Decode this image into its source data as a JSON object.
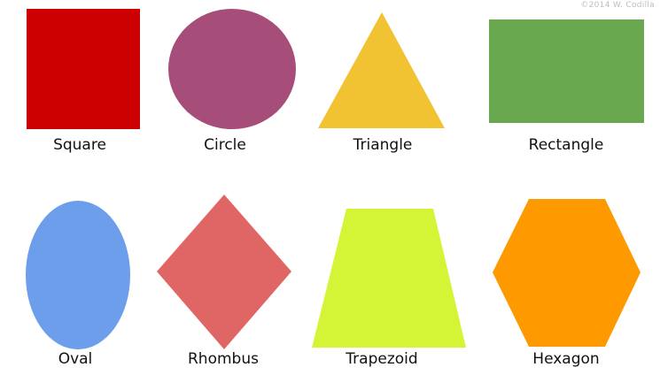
{
  "copyright": "©2014 W. Codilla",
  "shapes": [
    {
      "label": "Square",
      "color": "#cc0000"
    },
    {
      "label": "Circle",
      "color": "#a64d79"
    },
    {
      "label": "Triangle",
      "color": "#f1c232"
    },
    {
      "label": "Rectangle",
      "color": "#6aa84f"
    },
    {
      "label": "Oval",
      "color": "#6d9eeb"
    },
    {
      "label": "Rhombus",
      "color": "#e06666"
    },
    {
      "label": "Trapezoid",
      "color": "#d3f536"
    },
    {
      "label": "Hexagon",
      "color": "#ff9900"
    }
  ]
}
